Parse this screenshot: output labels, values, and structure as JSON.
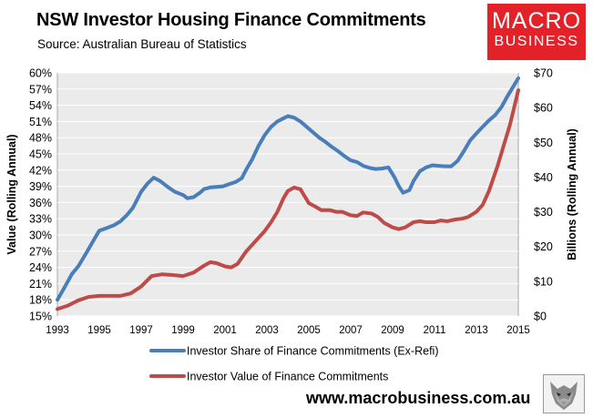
{
  "header": {
    "title": "NSW Investor Housing Finance Commitments",
    "subtitle": "Source: Australian Bureau of Statistics"
  },
  "logo": {
    "line1": "MACRO",
    "line2": "BUSINESS"
  },
  "footer": {
    "website": "www.macrobusiness.com.au"
  },
  "colors": {
    "share": "#4a7ebb",
    "value": "#be4b48",
    "plot_bg": "#ebebeb",
    "grid": "#ffffff"
  },
  "chart_data": {
    "type": "line",
    "title": "NSW Investor Housing Finance Commitments",
    "xlabel": "",
    "ylabel": "Value (Rolling Annual)",
    "y2label": "Billions (Rolling Annual)",
    "xlim": [
      1993,
      2015
    ],
    "ylim": [
      15,
      60
    ],
    "y2lim": [
      0,
      70
    ],
    "xticks": [
      "1993",
      "1995",
      "1997",
      "1999",
      "2001",
      "2003",
      "2005",
      "2007",
      "2009",
      "2011",
      "2013",
      "2015"
    ],
    "yticks": [
      "15%",
      "18%",
      "21%",
      "24%",
      "27%",
      "30%",
      "33%",
      "36%",
      "39%",
      "42%",
      "45%",
      "48%",
      "51%",
      "54%",
      "57%",
      "60%"
    ],
    "y2ticks": [
      "$0",
      "$10",
      "$20",
      "$30",
      "$40",
      "$50",
      "$60",
      "$70"
    ],
    "legend": [
      "Investor Share of Finance Commitments (Ex-Refi)",
      "Investor Value of Finance Commitments"
    ],
    "series": [
      {
        "name": "Investor Share of Finance Commitments (Ex-Refi)",
        "axis": "left",
        "x": [
          1993.0,
          1993.3,
          1993.7,
          1994.0,
          1994.4,
          1994.8,
          1995.0,
          1995.3,
          1995.7,
          1996.0,
          1996.3,
          1996.6,
          1997.0,
          1997.3,
          1997.6,
          1997.9,
          1998.3,
          1998.6,
          1999.0,
          1999.2,
          1999.5,
          1999.8,
          2000.0,
          2000.3,
          2000.6,
          2000.9,
          2001.2,
          2001.5,
          2001.8,
          2002.0,
          2002.3,
          2002.6,
          2002.9,
          2003.2,
          2003.5,
          2003.8,
          2004.0,
          2004.3,
          2004.6,
          2004.9,
          2005.2,
          2005.5,
          2005.8,
          2006.1,
          2006.4,
          2006.7,
          2007.0,
          2007.3,
          2007.6,
          2007.9,
          2008.2,
          2008.5,
          2008.8,
          2009.1,
          2009.3,
          2009.5,
          2009.8,
          2010.0,
          2010.3,
          2010.6,
          2010.9,
          2011.2,
          2011.5,
          2011.8,
          2012.1,
          2012.4,
          2012.7,
          2013.0,
          2013.3,
          2013.6,
          2013.9,
          2014.2,
          2014.5,
          2014.8,
          2015.0
        ],
        "values": [
          18.0,
          20.0,
          22.8,
          24.2,
          26.8,
          29.5,
          30.8,
          31.2,
          31.8,
          32.5,
          33.6,
          35.0,
          38.0,
          39.5,
          40.6,
          40.0,
          38.8,
          38.0,
          37.4,
          36.8,
          37.0,
          37.8,
          38.5,
          38.8,
          38.9,
          39.0,
          39.4,
          39.8,
          40.5,
          42.0,
          44.0,
          46.5,
          48.5,
          50.0,
          51.0,
          51.6,
          52.0,
          51.7,
          51.0,
          50.0,
          49.0,
          48.0,
          47.2,
          46.3,
          45.5,
          44.6,
          43.8,
          43.5,
          42.8,
          42.4,
          42.2,
          42.3,
          42.5,
          40.6,
          39.0,
          37.8,
          38.3,
          40.0,
          41.8,
          42.5,
          42.9,
          42.8,
          42.7,
          42.7,
          43.7,
          45.5,
          47.5,
          48.8,
          50.0,
          51.2,
          52.2,
          53.7,
          55.8,
          57.7,
          59.0
        ]
      },
      {
        "name": "Investor Value of Finance Commitments",
        "axis": "right",
        "x": [
          1993.0,
          1993.5,
          1994.0,
          1994.5,
          1995.0,
          1995.5,
          1996.0,
          1996.5,
          1997.0,
          1997.5,
          1998.0,
          1998.5,
          1999.0,
          1999.5,
          2000.0,
          2000.3,
          2000.6,
          2001.0,
          2001.3,
          2001.6,
          2002.0,
          2002.3,
          2002.6,
          2002.9,
          2003.2,
          2003.5,
          2003.8,
          2004.0,
          2004.3,
          2004.6,
          2005.0,
          2005.3,
          2005.6,
          2006.0,
          2006.3,
          2006.6,
          2007.0,
          2007.3,
          2007.6,
          2008.0,
          2008.3,
          2008.6,
          2009.0,
          2009.3,
          2009.6,
          2010.0,
          2010.3,
          2010.6,
          2011.0,
          2011.3,
          2011.6,
          2012.0,
          2012.3,
          2012.6,
          2013.0,
          2013.3,
          2013.6,
          2014.0,
          2014.3,
          2014.6,
          2015.0
        ],
        "values": [
          2.0,
          3.0,
          4.5,
          5.5,
          5.8,
          5.8,
          5.8,
          6.5,
          8.5,
          11.5,
          12.0,
          11.8,
          11.5,
          12.5,
          14.5,
          15.5,
          15.2,
          14.3,
          14.0,
          15.0,
          18.5,
          20.5,
          22.5,
          24.5,
          27.0,
          30.0,
          34.0,
          36.0,
          37.0,
          36.5,
          32.5,
          31.5,
          30.5,
          30.5,
          30.0,
          30.0,
          29.0,
          28.8,
          29.8,
          29.5,
          28.5,
          26.8,
          25.5,
          25.0,
          25.5,
          27.0,
          27.3,
          27.0,
          27.0,
          27.5,
          27.3,
          27.8,
          28.0,
          28.5,
          30.0,
          32.0,
          36.0,
          43.0,
          49.0,
          55.0,
          65.0
        ]
      }
    ]
  }
}
